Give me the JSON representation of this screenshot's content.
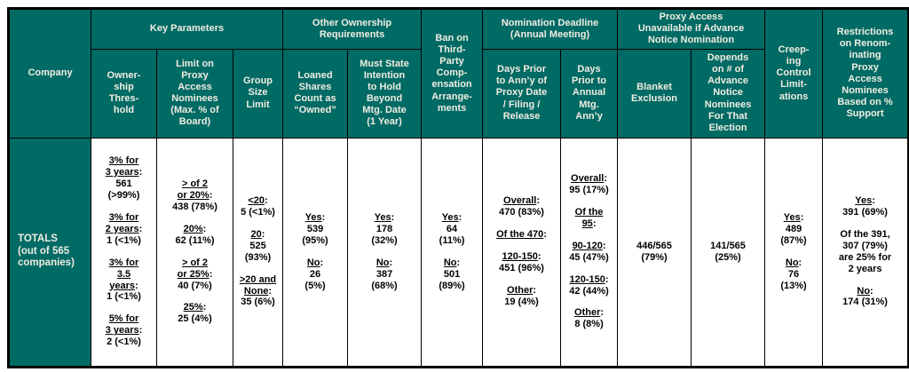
{
  "colors": {
    "header_bg": "#006A64",
    "header_text": "#F1EDE2",
    "border": "#000000"
  },
  "table": {
    "header": {
      "company": "Company",
      "key_parameters": "Key Parameters",
      "other_ownership": "Other Ownership\nRequirements",
      "ban": "Ban on\nThird-\nParty\nComp-\nensation\nArrange-\nments",
      "nomination_deadline": "Nomination Deadline\n(Annual Meeting)",
      "proxy_unavailable": "Proxy Access\nUnavailable if Advance\nNotice Nomination",
      "creeping": "Creep-\ning\nControl\nLimit-\nations",
      "restrictions": "Restrictions\non Renom-\ninating\nProxy\nAccess\nNominees\nBased on %\nSupport",
      "ownership_threshold": "Owner-\nship\nThres-\nhold",
      "limit_nominees": "Limit on\nProxy\nAccess\nNominees\n(Max. % of\nBoard)",
      "group_size": "Group\nSize\nLimit",
      "loaned_shares": "Loaned\nShares\nCount as\n“Owned”",
      "must_state": "Must State\nIntention\nto Hold\nBeyond\nMtg. Date\n(1 Year)",
      "days_proxy": "Days Prior\nto Ann’y of\nProxy Date\n/ Filing /\nRelease",
      "days_annual": "Days\nPrior to\nAnnual\nMtg.\nAnn’y",
      "blanket": "Blanket\nExclusion",
      "depends": "Depends\non # of\nAdvance\nNotice\nNominees\nFor That\nElection"
    },
    "row_label": "TOTALS\n(out of 565\ncompanies)",
    "cells": {
      "ownership": [
        {
          "u": "3% for\n3 years:",
          "t": "561\n(>99%)"
        },
        {
          "u": "3% for\n2 years:",
          "t": "1 (<1%)"
        },
        {
          "u": "3% for\n3.5\nyears:",
          "t": "1 (<1%)"
        },
        {
          "u": "5% for\n3 years:",
          "t": "2 (<1%)"
        }
      ],
      "limit": [
        {
          "u": "> of 2\nor 20%:",
          "t": "438 (78%)"
        },
        {
          "u": "20%:",
          "t": "62 (11%)"
        },
        {
          "u": "> of 2\nor 25%:",
          "t": "40 (7%)"
        },
        {
          "u": "25%:",
          "t": "25 (4%)"
        }
      ],
      "group_size": [
        {
          "u": "<20:",
          "t": "5 (<1%)"
        },
        {
          "u": "20:",
          "t": "525 (93%)"
        },
        {
          "u": ">20 and\nNone:",
          "t": "35 (6%)"
        }
      ],
      "loaned": [
        {
          "u": "Yes:",
          "t": "539\n(95%)"
        },
        {
          "u": "No:",
          "t": "26\n(5%)"
        }
      ],
      "must_state": [
        {
          "u": "Yes:",
          "t": "178\n(32%)"
        },
        {
          "u": "No:",
          "t": "387\n(68%)"
        }
      ],
      "ban": [
        {
          "u": "Yes:",
          "t": "64\n(11%)"
        },
        {
          "u": "No:",
          "t": "501\n(89%)"
        }
      ],
      "days_proxy": [
        {
          "u": "Overall:",
          "t": "470 (83%)"
        },
        {
          "u": "Of the 470:",
          "t": ""
        },
        {
          "u": "120-150:",
          "t": "451 (96%)"
        },
        {
          "u": "Other:",
          "t": "19 (4%)"
        }
      ],
      "days_annual": [
        {
          "u": "Overall:",
          "t": "95 (17%)"
        },
        {
          "u": "Of the\n95:",
          "t": ""
        },
        {
          "u": "90-120:",
          "t": "45 (47%)"
        },
        {
          "u": "120-150:",
          "t": "42 (44%)"
        },
        {
          "u": "Other:",
          "t": "8 (8%)"
        }
      ],
      "blanket": [
        {
          "u": "",
          "t": "446/565\n(79%)"
        }
      ],
      "depends": [
        {
          "u": "",
          "t": "141/565\n(25%)"
        }
      ],
      "creeping": [
        {
          "u": "Yes:",
          "t": "489\n(87%)"
        },
        {
          "u": "No:",
          "t": "76\n(13%)"
        }
      ],
      "restrictions": [
        {
          "u": "Yes:",
          "t": "391 (69%)"
        },
        {
          "u": "",
          "t": "Of the 391,\n307 (79%)\nare 25% for\n2 years"
        },
        {
          "u": "No:",
          "t": "174 (31%)"
        }
      ]
    }
  }
}
